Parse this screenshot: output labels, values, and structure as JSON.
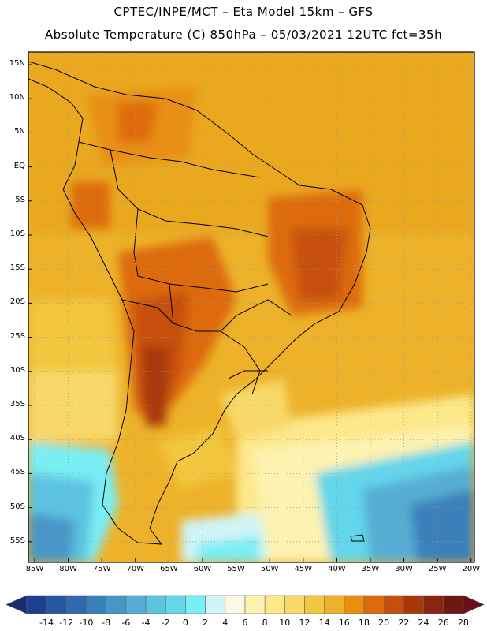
{
  "header": {
    "line1": "CPTEC/INPE/MCT  –   Eta Model 15km  –  GFS",
    "line2": "Absolute Temperature (C) 850hPa – 05/03/2021 12UTC fct=35h"
  },
  "map": {
    "lat_labels": [
      "15N",
      "10N",
      "5N",
      "EQ",
      "5S",
      "10S",
      "15S",
      "20S",
      "25S",
      "30S",
      "35S",
      "40S",
      "45S",
      "50S",
      "55S"
    ],
    "lon_labels": [
      "85W",
      "80W",
      "75W",
      "70W",
      "65W",
      "60W",
      "55W",
      "50W",
      "45W",
      "40W",
      "35W",
      "30W",
      "25W",
      "20W"
    ]
  },
  "colorbar": {
    "labels": [
      "-14",
      "-12",
      "-10",
      "-8",
      "-6",
      "-4",
      "-2",
      "0",
      "2",
      "4",
      "6",
      "8",
      "10",
      "12",
      "14",
      "16",
      "18",
      "20",
      "22",
      "24",
      "26",
      "28"
    ],
    "colors": [
      "#1d3f8f",
      "#25569e",
      "#2e6aad",
      "#3a80bb",
      "#4796c7",
      "#56add4",
      "#5cc3e0",
      "#63d6ea",
      "#7aeef5",
      "#d0f4f8",
      "#fdf8e6",
      "#fdf2b0",
      "#fde88a",
      "#f8d868",
      "#f2c63e",
      "#edb229",
      "#e88f12",
      "#dd6b0b",
      "#c64f0b",
      "#a8380c",
      "#8a2610",
      "#6e1812"
    ],
    "low_color": "#1d2a70",
    "high_color": "#6a0e1a"
  }
}
